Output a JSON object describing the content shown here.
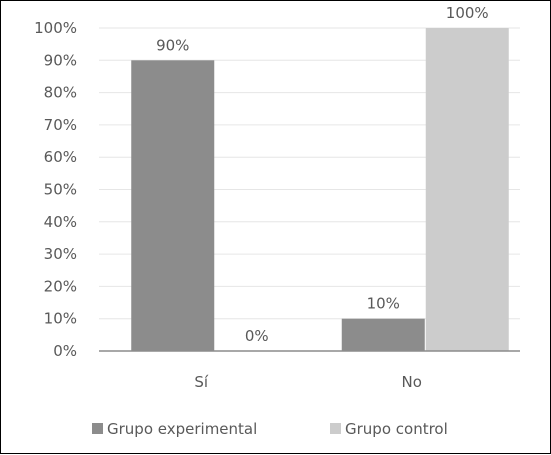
{
  "chart_data": {
    "type": "bar",
    "title": "",
    "xlabel": "",
    "ylabel": "",
    "ylim": [
      0,
      100
    ],
    "y_unit": "%",
    "categories": [
      "Sí",
      "No"
    ],
    "series": [
      {
        "name": "Grupo experimental",
        "values": [
          90,
          10
        ],
        "value_labels": [
          "90%",
          "10%"
        ],
        "color": "#8c8c8c"
      },
      {
        "name": "Grupo control",
        "values": [
          0,
          100
        ],
        "value_labels": [
          "0%",
          "100%"
        ],
        "color": "#cccccc"
      }
    ],
    "yticks": [
      "0%",
      "10%",
      "20%",
      "30%",
      "40%",
      "50%",
      "60%",
      "70%",
      "80%",
      "90%",
      "100%"
    ],
    "grid": true,
    "legend_position": "bottom",
    "colors": {
      "gridline": "#e6e6e6",
      "axis": "#8c8c8c",
      "text": "#595959"
    }
  }
}
